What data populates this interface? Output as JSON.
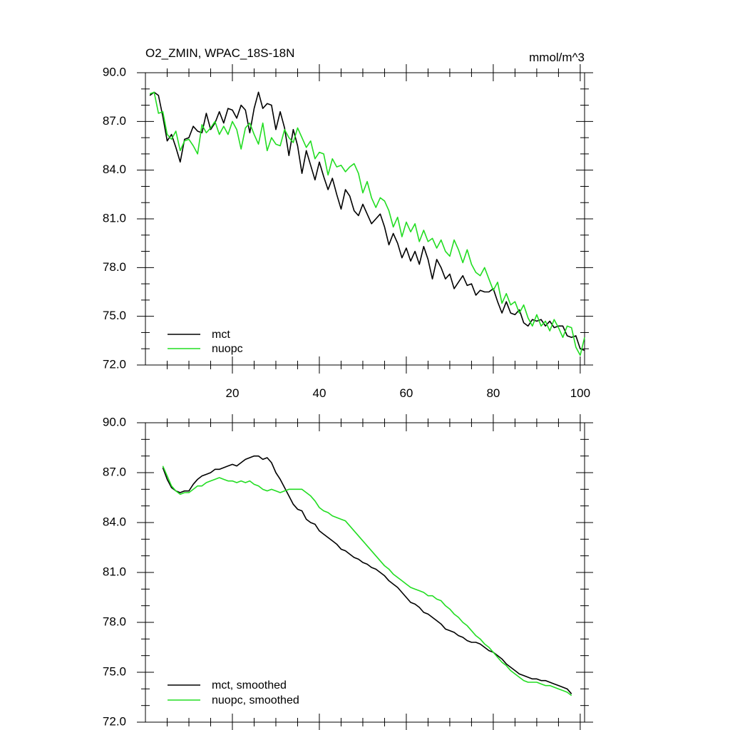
{
  "title": "O2_ZMIN, WPAC_18S-18N",
  "units": "mmol/m^3",
  "colors": {
    "mct": "#000000",
    "nuopc": "#22dd22"
  },
  "chart_data": [
    {
      "type": "line",
      "panel": "top",
      "title": "O2_ZMIN, WPAC_18S-18N",
      "units": "mmol/m^3",
      "xlim": [
        0,
        101
      ],
      "ylim": [
        72.0,
        90.0
      ],
      "xticks": [
        20,
        40,
        60,
        80,
        100
      ],
      "xtick_labels": [
        "20",
        "40",
        "60",
        "80",
        "100"
      ],
      "yticks": [
        72.0,
        75.0,
        78.0,
        81.0,
        84.0,
        87.0,
        90.0
      ],
      "ytick_labels": [
        "72.0",
        "75.0",
        "78.0",
        "81.0",
        "84.0",
        "87.0",
        "90.0"
      ],
      "legend": [
        "mct",
        "nuopc"
      ],
      "legend_position": "bottom-left",
      "series": [
        {
          "name": "mct",
          "x": [
            1,
            2,
            3,
            4,
            5,
            6,
            7,
            8,
            9,
            10,
            11,
            12,
            13,
            14,
            15,
            16,
            17,
            18,
            19,
            20,
            21,
            22,
            23,
            24,
            25,
            26,
            27,
            28,
            29,
            30,
            31,
            32,
            33,
            34,
            35,
            36,
            37,
            38,
            39,
            40,
            41,
            42,
            43,
            44,
            45,
            46,
            47,
            48,
            49,
            50,
            51,
            52,
            53,
            54,
            55,
            56,
            57,
            58,
            59,
            60,
            61,
            62,
            63,
            64,
            65,
            66,
            67,
            68,
            69,
            70,
            71,
            72,
            73,
            74,
            75,
            76,
            77,
            78,
            79,
            80,
            81,
            82,
            83,
            84,
            85,
            86,
            87,
            88,
            89,
            90,
            91,
            92,
            93,
            94,
            95,
            96,
            97,
            98,
            99,
            100,
            101
          ],
          "values": [
            88.6,
            88.8,
            88.6,
            87.3,
            85.8,
            86.2,
            85.4,
            84.5,
            85.9,
            86.0,
            86.7,
            86.4,
            86.3,
            87.5,
            86.5,
            86.9,
            87.6,
            86.9,
            87.8,
            87.7,
            87.2,
            88.0,
            87.7,
            86.3,
            87.8,
            88.8,
            87.8,
            88.1,
            88.0,
            86.5,
            87.6,
            86.6,
            84.9,
            86.5,
            85.5,
            83.8,
            85.2,
            84.3,
            83.4,
            84.5,
            83.6,
            82.8,
            83.5,
            82.5,
            81.6,
            82.8,
            82.4,
            81.5,
            81.2,
            81.9,
            81.3,
            80.7,
            81.0,
            81.3,
            80.5,
            79.4,
            80.1,
            79.5,
            78.6,
            79.2,
            78.4,
            79.0,
            78.2,
            79.3,
            78.5,
            77.3,
            78.5,
            78.0,
            77.3,
            77.6,
            76.7,
            77.1,
            77.5,
            76.9,
            77.0,
            76.3,
            76.6,
            76.5,
            76.5,
            76.7,
            75.9,
            75.2,
            75.9,
            75.2,
            75.1,
            75.4,
            74.6,
            74.4,
            74.8,
            74.7,
            74.8,
            74.4,
            74.7,
            74.3,
            74.4,
            74.4,
            73.8,
            73.7,
            73.8,
            73.0,
            72.9
          ]
        },
        {
          "name": "nuopc",
          "x": [
            1,
            2,
            3,
            4,
            5,
            6,
            7,
            8,
            9,
            10,
            11,
            12,
            13,
            14,
            15,
            16,
            17,
            18,
            19,
            20,
            21,
            22,
            23,
            24,
            25,
            26,
            27,
            28,
            29,
            30,
            31,
            32,
            33,
            34,
            35,
            36,
            37,
            38,
            39,
            40,
            41,
            42,
            43,
            44,
            45,
            46,
            47,
            48,
            49,
            50,
            51,
            52,
            53,
            54,
            55,
            56,
            57,
            58,
            59,
            60,
            61,
            62,
            63,
            64,
            65,
            66,
            67,
            68,
            69,
            70,
            71,
            72,
            73,
            74,
            75,
            76,
            77,
            78,
            79,
            80,
            81,
            82,
            83,
            84,
            85,
            86,
            87,
            88,
            89,
            90,
            91,
            92,
            93,
            94,
            95,
            96,
            97,
            98,
            99,
            100,
            101
          ],
          "values": [
            88.7,
            88.8,
            87.5,
            87.6,
            86.2,
            85.9,
            86.4,
            85.2,
            85.8,
            85.9,
            85.5,
            85.0,
            86.8,
            86.3,
            86.6,
            87.0,
            86.2,
            86.7,
            86.2,
            87.0,
            86.5,
            85.3,
            86.6,
            86.9,
            86.2,
            85.6,
            86.9,
            85.2,
            86.0,
            85.6,
            85.5,
            86.5,
            86.0,
            85.7,
            86.6,
            86.0,
            85.4,
            85.8,
            84.7,
            85.1,
            85.0,
            83.7,
            84.7,
            84.2,
            84.3,
            83.9,
            84.2,
            84.4,
            83.8,
            82.6,
            83.3,
            82.3,
            81.7,
            82.3,
            82.1,
            81.5,
            80.5,
            81.1,
            79.9,
            80.8,
            80.2,
            80.7,
            79.6,
            80.3,
            79.6,
            79.8,
            79.2,
            79.7,
            79.0,
            78.7,
            79.7,
            79.1,
            78.3,
            79.1,
            78.2,
            77.7,
            77.5,
            78.0,
            77.3,
            76.6,
            77.1,
            75.8,
            76.4,
            75.7,
            75.9,
            75.2,
            75.7,
            74.9,
            74.4,
            75.1,
            74.4,
            74.7,
            74.1,
            74.8,
            74.3,
            73.7,
            74.4,
            74.3,
            73.1,
            72.6,
            73.7
          ]
        }
      ]
    },
    {
      "type": "line",
      "panel": "bottom",
      "xlim": [
        0,
        101
      ],
      "ylim": [
        72.0,
        90.0
      ],
      "yticks": [
        72.0,
        75.0,
        78.0,
        81.0,
        84.0,
        87.0,
        90.0
      ],
      "ytick_labels": [
        "72.0",
        "75.0",
        "78.0",
        "81.0",
        "84.0",
        "87.0",
        "90.0"
      ],
      "legend": [
        "mct, smoothed",
        "nuopc, smoothed"
      ],
      "legend_position": "bottom-left",
      "series": [
        {
          "name": "mct, smoothed",
          "x": [
            4,
            5,
            6,
            7,
            8,
            9,
            10,
            11,
            12,
            13,
            14,
            15,
            16,
            17,
            18,
            19,
            20,
            21,
            22,
            23,
            24,
            25,
            26,
            27,
            28,
            29,
            30,
            31,
            32,
            33,
            34,
            35,
            36,
            37,
            38,
            39,
            40,
            41,
            42,
            43,
            44,
            45,
            46,
            47,
            48,
            49,
            50,
            51,
            52,
            53,
            54,
            55,
            56,
            57,
            58,
            59,
            60,
            61,
            62,
            63,
            64,
            65,
            66,
            67,
            68,
            69,
            70,
            71,
            72,
            73,
            74,
            75,
            76,
            77,
            78,
            79,
            80,
            81,
            82,
            83,
            84,
            85,
            86,
            87,
            88,
            89,
            90,
            91,
            92,
            93,
            94,
            95,
            96,
            97,
            98
          ],
          "values": [
            87.3,
            86.6,
            86.1,
            85.9,
            85.8,
            85.9,
            85.9,
            86.3,
            86.6,
            86.8,
            86.9,
            87.0,
            87.2,
            87.2,
            87.3,
            87.4,
            87.5,
            87.4,
            87.6,
            87.8,
            87.9,
            88.0,
            88.0,
            87.8,
            87.9,
            87.6,
            87.0,
            86.6,
            86.1,
            85.6,
            85.1,
            84.8,
            84.7,
            84.2,
            84.0,
            83.9,
            83.5,
            83.3,
            83.1,
            82.9,
            82.7,
            82.4,
            82.3,
            82.1,
            81.9,
            81.8,
            81.6,
            81.5,
            81.3,
            81.2,
            81.0,
            80.8,
            80.5,
            80.3,
            80.1,
            79.8,
            79.5,
            79.2,
            79.1,
            78.9,
            78.6,
            78.5,
            78.3,
            78.1,
            77.9,
            77.6,
            77.5,
            77.4,
            77.2,
            77.1,
            76.9,
            76.8,
            76.8,
            76.7,
            76.5,
            76.3,
            76.2,
            76.0,
            75.8,
            75.5,
            75.3,
            75.1,
            74.9,
            74.8,
            74.7,
            74.6,
            74.6,
            74.5,
            74.5,
            74.4,
            74.3,
            74.2,
            74.1,
            74.0,
            73.7
          ]
        },
        {
          "name": "nuopc, smoothed",
          "x": [
            4,
            5,
            6,
            7,
            8,
            9,
            10,
            11,
            12,
            13,
            14,
            15,
            16,
            17,
            18,
            19,
            20,
            21,
            22,
            23,
            24,
            25,
            26,
            27,
            28,
            29,
            30,
            31,
            32,
            33,
            34,
            35,
            36,
            37,
            38,
            39,
            40,
            41,
            42,
            43,
            44,
            45,
            46,
            47,
            48,
            49,
            50,
            51,
            52,
            53,
            54,
            55,
            56,
            57,
            58,
            59,
            60,
            61,
            62,
            63,
            64,
            65,
            66,
            67,
            68,
            69,
            70,
            71,
            72,
            73,
            74,
            75,
            76,
            77,
            78,
            79,
            80,
            81,
            82,
            83,
            84,
            85,
            86,
            87,
            88,
            89,
            90,
            91,
            92,
            93,
            94,
            95,
            96,
            97,
            98
          ],
          "values": [
            87.4,
            86.8,
            86.2,
            85.9,
            85.7,
            85.8,
            85.8,
            86.0,
            86.2,
            86.2,
            86.4,
            86.5,
            86.6,
            86.7,
            86.6,
            86.5,
            86.5,
            86.4,
            86.5,
            86.4,
            86.5,
            86.3,
            86.2,
            86.0,
            85.9,
            86.0,
            85.9,
            85.8,
            85.9,
            86.0,
            86.0,
            86.0,
            86.0,
            85.8,
            85.6,
            85.3,
            84.9,
            84.7,
            84.6,
            84.4,
            84.3,
            84.2,
            84.1,
            83.8,
            83.5,
            83.2,
            82.9,
            82.6,
            82.3,
            82.0,
            81.7,
            81.4,
            81.2,
            80.9,
            80.7,
            80.5,
            80.3,
            80.1,
            80.0,
            79.9,
            79.8,
            79.6,
            79.6,
            79.4,
            79.3,
            79.0,
            78.8,
            78.5,
            78.3,
            78.0,
            77.8,
            77.5,
            77.2,
            77.0,
            76.7,
            76.5,
            76.2,
            75.9,
            75.6,
            75.4,
            75.1,
            74.9,
            74.7,
            74.5,
            74.4,
            74.4,
            74.4,
            74.3,
            74.2,
            74.2,
            74.1,
            74.0,
            73.9,
            73.8,
            73.6
          ]
        }
      ]
    }
  ]
}
